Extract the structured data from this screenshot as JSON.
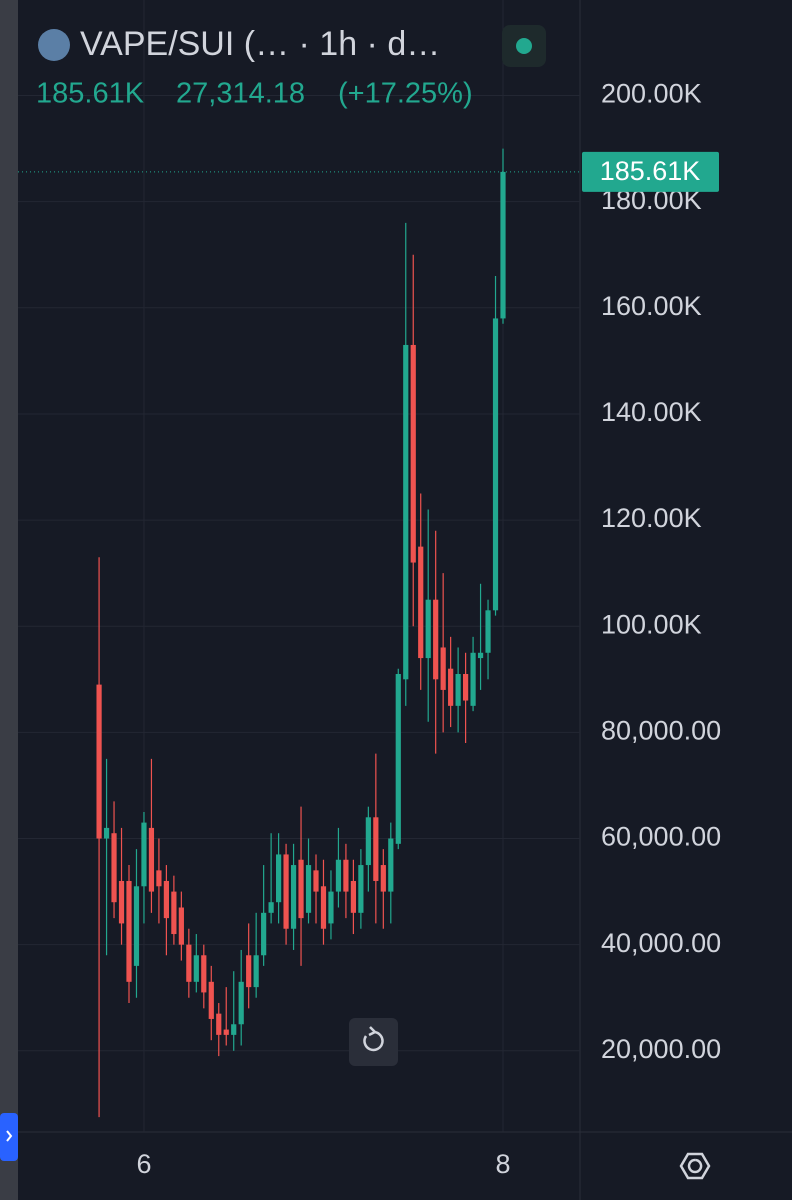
{
  "chart_data": {
    "type": "candlestick",
    "title": "VAPE/SUI (… · 1h · d…",
    "current_price": {
      "value": 185610,
      "label": "185.61K"
    },
    "change": {
      "value": 27314.18,
      "label": "27,314.18"
    },
    "change_percent": {
      "value": 17.25,
      "label": "(+17.25%)"
    },
    "categories": [
      null,
      null,
      null,
      null,
      null,
      null,
      "6",
      null,
      null,
      null,
      null,
      null,
      null,
      null,
      null,
      null,
      null,
      null,
      null,
      null,
      null,
      null,
      null,
      null,
      null,
      null,
      null,
      null,
      null,
      null,
      null,
      null,
      null,
      null,
      null,
      null,
      null,
      null,
      null,
      null,
      null,
      null,
      null,
      null,
      null,
      null,
      null,
      null,
      null,
      null,
      null,
      null,
      null,
      null,
      "8"
    ],
    "open": [
      89000,
      60000,
      61000,
      52000,
      52000,
      36000,
      51000,
      62000,
      54000,
      52000,
      50000,
      47000,
      40000,
      33000,
      38000,
      33000,
      27000,
      24000,
      23000,
      25000,
      38000,
      32000,
      38000,
      46000,
      48000,
      57000,
      43000,
      56000,
      46000,
      54000,
      51000,
      44000,
      50000,
      56000,
      52000,
      46000,
      55000,
      64000,
      55000,
      50000,
      59000,
      90000,
      153000,
      115000,
      94000,
      105000,
      96000,
      92000,
      85000,
      91000,
      85000,
      94000,
      95000,
      103000,
      158000
    ],
    "high": [
      113000,
      75000,
      67000,
      62000,
      55000,
      58000,
      65000,
      75000,
      60000,
      55000,
      53000,
      50000,
      43000,
      42000,
      40000,
      36000,
      29000,
      32000,
      35000,
      39000,
      44000,
      46000,
      55000,
      61000,
      61000,
      59000,
      59000,
      66000,
      60000,
      57000,
      56000,
      54000,
      62000,
      59000,
      56000,
      58000,
      66000,
      76000,
      58000,
      63000,
      92000,
      176000,
      170000,
      125000,
      122000,
      118000,
      110000,
      98000,
      96000,
      95000,
      98000,
      108000,
      105000,
      166000,
      190000
    ],
    "low": [
      7500,
      38000,
      45000,
      40000,
      29000,
      30000,
      44000,
      46000,
      44000,
      38000,
      40000,
      37000,
      30000,
      31000,
      28000,
      22000,
      19000,
      21000,
      20000,
      21000,
      28000,
      30000,
      36000,
      44000,
      44000,
      40000,
      39000,
      36000,
      44000,
      44000,
      40000,
      41000,
      47000,
      45000,
      42000,
      43000,
      50000,
      44000,
      43000,
      44000,
      58000,
      85000,
      100000,
      88000,
      82000,
      76000,
      80000,
      81000,
      80000,
      78000,
      84000,
      88000,
      90000,
      102000,
      157000
    ],
    "close": [
      60000,
      62000,
      48000,
      44000,
      33000,
      51000,
      63000,
      50000,
      51000,
      45000,
      42000,
      40000,
      33000,
      38000,
      31000,
      26000,
      23000,
      23000,
      25000,
      33000,
      32000,
      38000,
      46000,
      48000,
      57000,
      43000,
      55000,
      45000,
      55000,
      50000,
      43000,
      50000,
      56000,
      50000,
      46000,
      55000,
      64000,
      52000,
      50000,
      60000,
      91000,
      153000,
      112000,
      94000,
      105000,
      90000,
      88000,
      85000,
      91000,
      86000,
      95000,
      95000,
      103000,
      158000,
      185610
    ],
    "up_color": "#22a88f",
    "down_color": "#ef5350",
    "ylim": [
      4700,
      218000
    ],
    "yticks": [
      {
        "value": 20000,
        "label": "20,000.00"
      },
      {
        "value": 40000,
        "label": "40,000.00"
      },
      {
        "value": 60000,
        "label": "60,000.00"
      },
      {
        "value": 80000,
        "label": "80,000.00"
      },
      {
        "value": 100000,
        "label": "100.00K"
      },
      {
        "value": 120000,
        "label": "120.00K"
      },
      {
        "value": 140000,
        "label": "140.00K"
      },
      {
        "value": 160000,
        "label": "160.00K"
      },
      {
        "value": 180000,
        "label": "180.00K"
      },
      {
        "value": 200000,
        "label": "200.00K"
      }
    ],
    "grid": true
  }
}
